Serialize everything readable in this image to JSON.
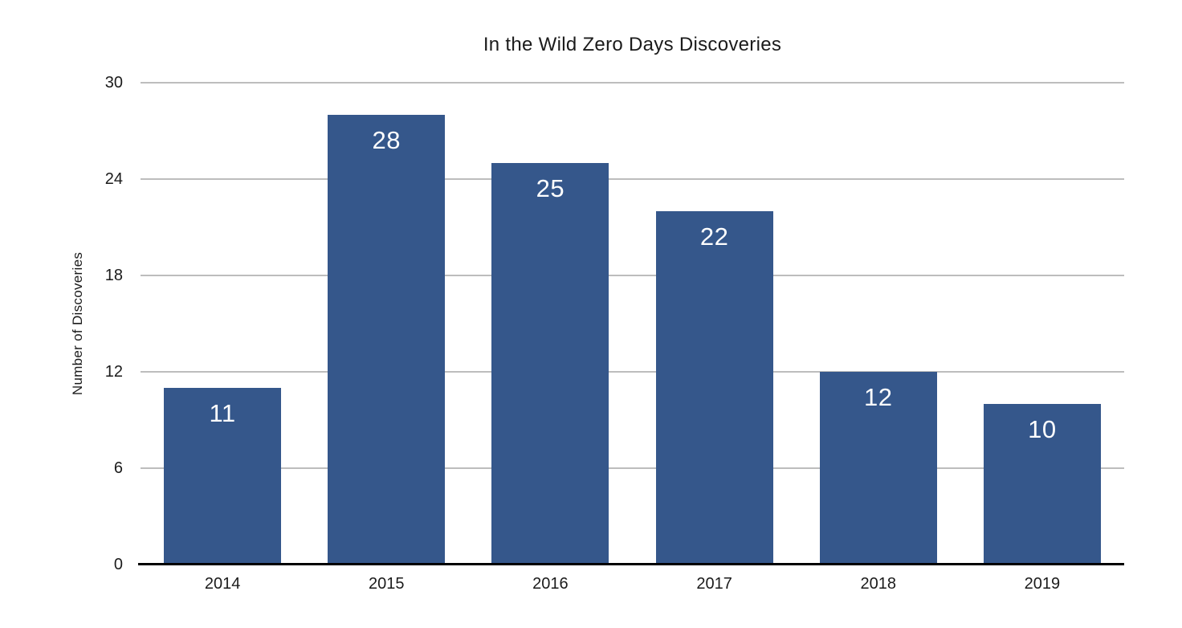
{
  "chart_data": {
    "type": "bar",
    "title": "In the Wild Zero Days Discoveries",
    "xlabel": "",
    "ylabel": "Number of Discoveries",
    "categories": [
      "2014",
      "2015",
      "2016",
      "2017",
      "2018",
      "2019"
    ],
    "values": [
      11,
      28,
      25,
      22,
      12,
      10
    ],
    "bar_labels": [
      "11",
      "28",
      "25",
      "22",
      "12",
      "10"
    ],
    "ylim": [
      0,
      30
    ],
    "yticks": [
      0,
      6,
      12,
      18,
      24,
      30
    ],
    "grid": true,
    "legend": "none"
  },
  "colors": {
    "bar": "#35578B",
    "bar_label_text": "#ffffff",
    "grid": "#bdbdbd",
    "axis": "#000000",
    "text": "#1b1b1b"
  }
}
